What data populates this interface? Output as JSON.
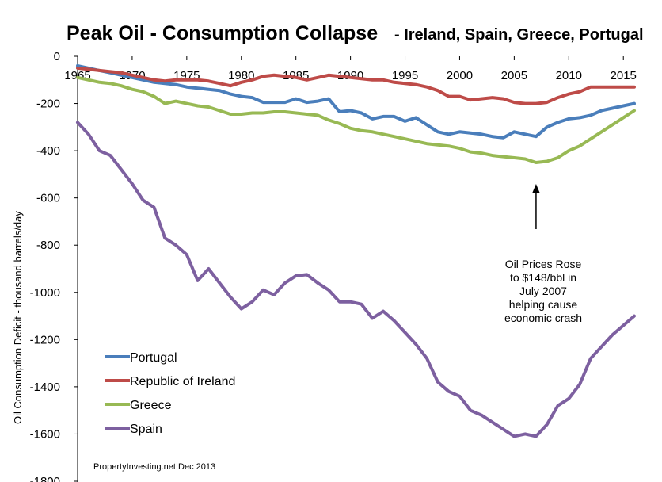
{
  "chart_data": {
    "type": "line",
    "title": "Peak Oil -  Consumption Collapse",
    "subtitle": "- Ireland, Spain, Greece, Portugal",
    "xlabel": "",
    "ylabel": "Oil  Consumption Deficit - thousand   barrels/day",
    "xlim": [
      1965,
      2016
    ],
    "ylim": [
      -1800,
      0
    ],
    "x_ticks": [
      "1965",
      "1970",
      "1975",
      "1980",
      "1985",
      "1990",
      "1995",
      "2000",
      "2005",
      "2010",
      "2015"
    ],
    "y_ticks": [
      "0",
      "-200",
      "-400",
      "-600",
      "-800",
      "-1000",
      "-1200",
      "-1400",
      "-1600",
      "-1800"
    ],
    "x": [
      1965,
      1966,
      1967,
      1968,
      1969,
      1970,
      1971,
      1972,
      1973,
      1974,
      1975,
      1976,
      1977,
      1978,
      1979,
      1980,
      1981,
      1982,
      1983,
      1984,
      1985,
      1986,
      1987,
      1988,
      1989,
      1990,
      1991,
      1992,
      1993,
      1994,
      1995,
      1996,
      1997,
      1998,
      1999,
      2000,
      2001,
      2002,
      2003,
      2004,
      2005,
      2006,
      2007,
      2008,
      2009,
      2010,
      2011,
      2012,
      2013,
      2014,
      2015,
      2016
    ],
    "series": [
      {
        "name": "Portugal",
        "color": "#4a7ebb",
        "values": [
          -40,
          -50,
          -60,
          -70,
          -80,
          -90,
          -100,
          -110,
          -115,
          -120,
          -130,
          -135,
          -140,
          -145,
          -160,
          -170,
          -175,
          -195,
          -195,
          -195,
          -180,
          -195,
          -190,
          -180,
          -235,
          -230,
          -240,
          -265,
          -255,
          -255,
          -275,
          -260,
          -290,
          -320,
          -330,
          -320,
          -325,
          -330,
          -340,
          -345,
          -320,
          -330,
          -340,
          -300,
          -280,
          -265,
          -260,
          -250,
          -230,
          -220,
          -210,
          -200
        ]
      },
      {
        "name": "Republic of Ireland",
        "color": "#be4b48",
        "values": [
          -50,
          -55,
          -60,
          -65,
          -70,
          -80,
          -90,
          -100,
          -105,
          -100,
          -100,
          -100,
          -105,
          -115,
          -125,
          -110,
          -100,
          -85,
          -80,
          -85,
          -90,
          -100,
          -90,
          -80,
          -85,
          -90,
          -95,
          -100,
          -100,
          -110,
          -115,
          -120,
          -130,
          -145,
          -170,
          -170,
          -185,
          -180,
          -175,
          -180,
          -195,
          -200,
          -200,
          -195,
          -175,
          -160,
          -150,
          -130,
          -130,
          -130,
          -130,
          -130
        ]
      },
      {
        "name": "Greece",
        "color": "#98b954",
        "values": [
          -90,
          -100,
          -110,
          -115,
          -125,
          -140,
          -150,
          -170,
          -200,
          -190,
          -200,
          -210,
          -215,
          -230,
          -245,
          -245,
          -240,
          -240,
          -235,
          -235,
          -240,
          -245,
          -250,
          -270,
          -285,
          -305,
          -315,
          -320,
          -330,
          -340,
          -350,
          -360,
          -370,
          -375,
          -380,
          -390,
          -405,
          -410,
          -420,
          -425,
          -430,
          -435,
          -450,
          -445,
          -430,
          -400,
          -380,
          -350,
          -320,
          -290,
          -260,
          -230
        ]
      },
      {
        "name": "Spain",
        "color": "#7d60a0",
        "values": [
          -280,
          -330,
          -400,
          -420,
          -480,
          -540,
          -610,
          -640,
          -770,
          -800,
          -840,
          -950,
          -900,
          -960,
          -1020,
          -1070,
          -1040,
          -990,
          -1010,
          -960,
          -930,
          -925,
          -960,
          -990,
          -1040,
          -1040,
          -1050,
          -1110,
          -1080,
          -1120,
          -1170,
          -1220,
          -1280,
          -1380,
          -1420,
          -1440,
          -1500,
          -1520,
          -1550,
          -1580,
          -1610,
          -1600,
          -1610,
          -1560,
          -1480,
          -1450,
          -1390,
          -1280,
          -1230,
          -1180,
          -1140,
          -1100
        ]
      }
    ],
    "legend_position": "bottom-left",
    "grid": false,
    "annotation": {
      "lines": [
        "Oil Prices Rose",
        "to $148/bbl in",
        "July 2007",
        "helping cause",
        "economic crash"
      ],
      "arrow_x": 2007
    },
    "source": "PropertyInvesting.net  Dec 2013"
  }
}
